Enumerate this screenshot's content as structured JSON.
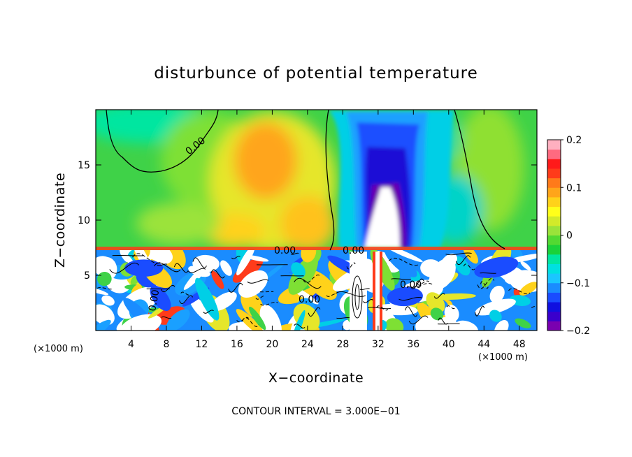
{
  "chart_data": {
    "type": "heatmap",
    "title": "disturbunce of potential temperature",
    "xlabel": "X−coordinate",
    "ylabel": "Z−coordinate",
    "x_unit": "(×1000 m)",
    "z_unit": "(×1000 m)",
    "xlim": [
      0,
      50
    ],
    "ylim": [
      0,
      20
    ],
    "x_ticks": [
      4,
      8,
      12,
      16,
      20,
      24,
      28,
      32,
      36,
      40,
      44,
      48
    ],
    "y_ticks": [
      5,
      10,
      15
    ],
    "colorbar": {
      "range": [
        -0.2,
        0.2
      ],
      "tick_values": [
        0.2,
        0.1,
        0,
        -0.1,
        -0.2
      ],
      "tick_labels": [
        "0.2",
        "0.1",
        "0",
        "−0.1",
        "−0.2"
      ]
    },
    "contour_labels": [
      "0.00",
      "0.00",
      "0.00",
      "0.00",
      "0.00",
      "0.00"
    ],
    "tropopause_z": 7.3,
    "features": [
      {
        "name": "cold anomaly",
        "x": 32,
        "z": 14,
        "value": -0.19
      },
      {
        "name": "warm anomaly",
        "x": 19.5,
        "z": 16.5,
        "value": 0.1
      },
      {
        "name": "warm anomaly",
        "x": 22,
        "z": 12,
        "value": 0.08
      },
      {
        "name": "warm anomaly",
        "x": 47,
        "z": 15,
        "value": 0.04
      }
    ],
    "footnote": "CONTOUR INTERVAL = 3.000E−01"
  }
}
